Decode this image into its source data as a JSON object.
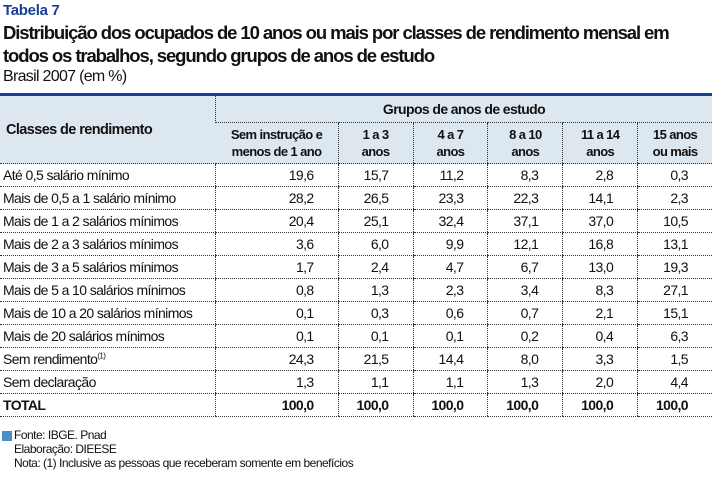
{
  "header": {
    "label": "Tabela 7",
    "title": "Distribuição dos ocupados de 10 anos ou mais por classes de rendimento mensal em todos os trabalhos, segundo grupos de anos de estudo",
    "subtitle": "Brasil 2007 (em %)"
  },
  "table": {
    "row_header": "Classes de rendimento",
    "group_header": "Grupos de anos de estudo",
    "columns": [
      [
        "Sem instrução e",
        "menos de 1 ano"
      ],
      [
        "1 a 3",
        "anos"
      ],
      [
        "4 a 7",
        "anos"
      ],
      [
        "8 a 10",
        "anos"
      ],
      [
        "11 a 14",
        "anos"
      ],
      [
        "15 anos",
        "ou mais"
      ]
    ],
    "rows": [
      {
        "label": "Até 0,5 salário mínimo",
        "values": [
          "19,6",
          "15,7",
          "11,2",
          "8,3",
          "2,8",
          "0,3"
        ]
      },
      {
        "label": "Mais de 0,5 a 1 salário mínimo",
        "values": [
          "28,2",
          "26,5",
          "23,3",
          "22,3",
          "14,1",
          "2,3"
        ]
      },
      {
        "label": "Mais de 1 a 2 salários mínimos",
        "values": [
          "20,4",
          "25,1",
          "32,4",
          "37,1",
          "37,0",
          "10,5"
        ]
      },
      {
        "label": "Mais de 2 a 3 salários mínimos",
        "values": [
          "3,6",
          "6,0",
          "9,9",
          "12,1",
          "16,8",
          "13,1"
        ]
      },
      {
        "label": "Mais de 3 a 5  salários mínimos",
        "values": [
          "1,7",
          "2,4",
          "4,7",
          "6,7",
          "13,0",
          "19,3"
        ]
      },
      {
        "label": "Mais de 5 a 10 salários mínimos",
        "values": [
          "0,8",
          "1,3",
          "2,3",
          "3,4",
          "8,3",
          "27,1"
        ]
      },
      {
        "label": "Mais de 10 a 20 salários mínimos",
        "values": [
          "0,1",
          "0,3",
          "0,6",
          "0,7",
          "2,1",
          "15,1"
        ]
      },
      {
        "label": "Mais de 20  salários mínimos",
        "values": [
          "0,1",
          "0,1",
          "0,1",
          "0,2",
          "0,4",
          "6,3"
        ]
      },
      {
        "label": "Sem rendimento",
        "sup": "(1)",
        "values": [
          "24,3",
          "21,5",
          "14,4",
          "8,0",
          "3,3",
          "1,5"
        ]
      },
      {
        "label": "Sem declaração",
        "values": [
          "1,3",
          "1,1",
          "1,1",
          "1,3",
          "2,0",
          "4,4"
        ]
      },
      {
        "label": "TOTAL",
        "values": [
          "100,0",
          "100,0",
          "100,0",
          "100,0",
          "100,0",
          "100,0"
        ],
        "total": true
      }
    ]
  },
  "footer": {
    "source": "Fonte: IBGE. Pnad",
    "elaboration": "Elaboração: DIEESE",
    "note": "Nota: (1) Inclusive as pessoas que receberam somente em benefícios"
  },
  "colors": {
    "accent": "#1b3f95",
    "header_bg": "#dde7f0",
    "legend_square": "#4a90c8"
  }
}
